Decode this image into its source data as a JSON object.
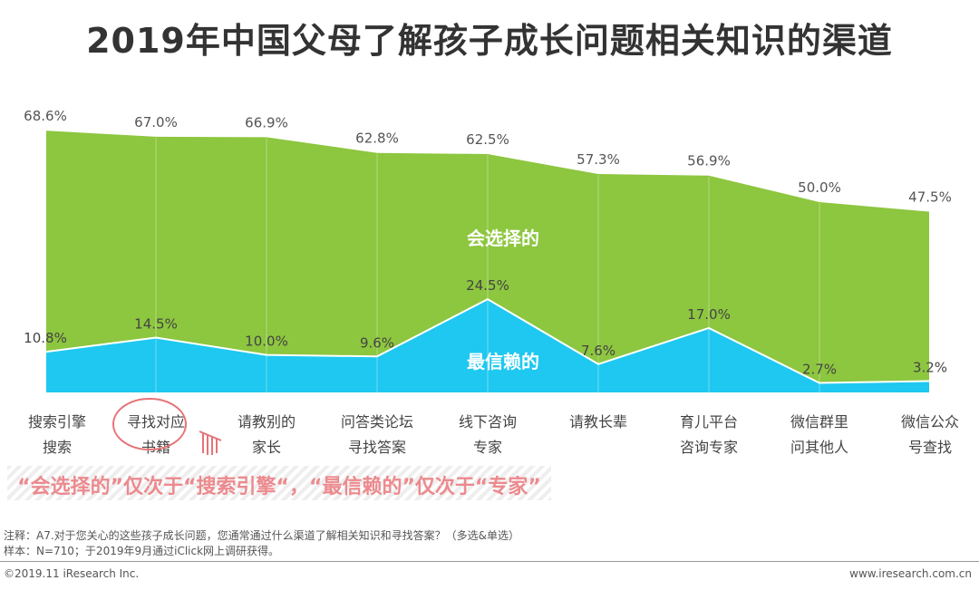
{
  "title": "2019年中国父母了解孩子成长问题相关知识的渠道",
  "chart_data": {
    "type": "area",
    "title": "2019年中国父母了解孩子成长问题相关知识的渠道",
    "categories": [
      [
        "搜索引擎",
        "搜索"
      ],
      [
        "寻找对应",
        "书籍"
      ],
      [
        "请教别的",
        "家长"
      ],
      [
        "问答类论坛",
        "寻找答案"
      ],
      [
        "线下咨询",
        "专家"
      ],
      [
        "请教长辈",
        ""
      ],
      [
        "育儿平台",
        "咨询专家"
      ],
      [
        "微信群里",
        "问其他人"
      ],
      [
        "微信公众",
        "号查找"
      ]
    ],
    "series": [
      {
        "name": "会选择的",
        "color": "#8dc63f",
        "values": [
          68.6,
          67.0,
          66.9,
          62.8,
          62.5,
          57.3,
          56.9,
          50.0,
          47.5
        ],
        "labels": [
          "68.6%",
          "67.0%",
          "66.9%",
          "62.8%",
          "62.5%",
          "57.3%",
          "56.9%",
          "50.0%",
          "47.5%"
        ]
      },
      {
        "name": "最信赖的",
        "color": "#1fc8f0",
        "values": [
          10.8,
          14.5,
          10.0,
          9.6,
          24.5,
          7.6,
          17.0,
          2.7,
          3.2
        ],
        "labels": [
          "10.8%",
          "14.5%",
          "10.0%",
          "9.6%",
          "24.5%",
          "7.6%",
          "17.0%",
          "2.7%",
          "3.2%"
        ]
      }
    ],
    "ylim": [
      0,
      70
    ],
    "grid": true
  },
  "callout": "“会选择的”仅次于“搜索引擎“，“最信赖的”仅次于“专家”",
  "notes": [
    "注释：A7.对于您关心的这些孩子成长问题，您通常通过什么渠道了解相关知识和寻找答案？（多选&单选）",
    "样本：N=710；于2019年9月通过iClick网上调研获得。"
  ],
  "footer": {
    "left": "©2019.11 iResearch Inc.",
    "right": "www.iresearch.com.cn"
  }
}
